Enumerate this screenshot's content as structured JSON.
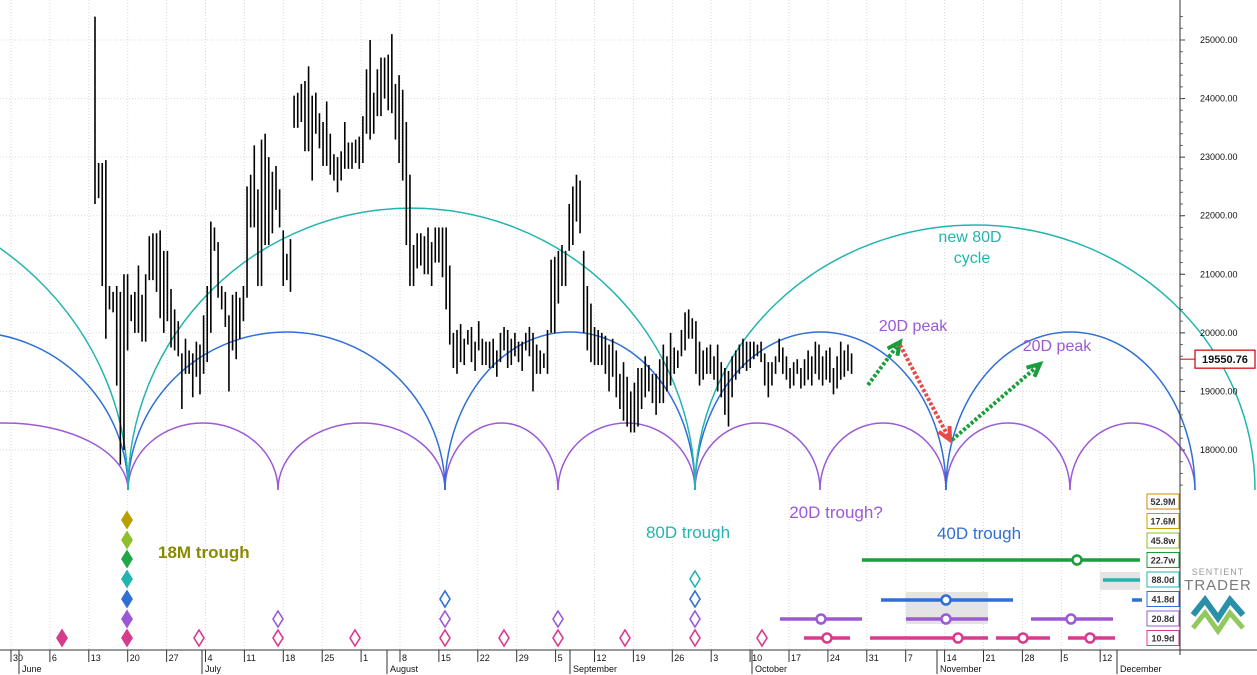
{
  "chart_data": {
    "type": "bar",
    "subtype": "ohlc-price-with-cycle-overlays",
    "title": "",
    "xlabel": "",
    "ylabel": "",
    "ylim": [
      17200,
      25450
    ],
    "y_ticks": [
      "25000.00",
      "24000.00",
      "23000.00",
      "22000.00",
      "21000.00",
      "20000.00",
      "19000.00",
      "18000.00"
    ],
    "last_price": "19550.76",
    "x_day_ticks": [
      "30",
      "6",
      "13",
      "20",
      "27",
      "4",
      "11",
      "18",
      "25",
      "1",
      "8",
      "15",
      "22",
      "29",
      "5",
      "12",
      "19",
      "26",
      "3",
      "10",
      "17",
      "24",
      "31",
      "7",
      "14",
      "21",
      "28",
      "5",
      "12"
    ],
    "x_month_labels": [
      "June",
      "July",
      "August",
      "September",
      "October",
      "November",
      "December"
    ],
    "grid": true,
    "price_bars": [
      [
        15,
        22200,
        25400
      ],
      [
        16,
        22300,
        22900
      ],
      [
        17,
        20800,
        22900
      ],
      [
        18,
        19900,
        22950
      ],
      [
        19,
        20400,
        20800
      ],
      [
        20,
        20350,
        20700
      ],
      [
        21,
        19100,
        20800
      ],
      [
        22,
        17750,
        20700
      ],
      [
        23,
        18000,
        21000
      ],
      [
        24,
        19700,
        21000
      ],
      [
        25,
        20200,
        20650
      ],
      [
        26,
        20000,
        20700
      ],
      [
        27,
        20000,
        21150
      ],
      [
        28,
        19850,
        20650
      ],
      [
        29,
        19850,
        21000
      ],
      [
        30,
        20900,
        21650
      ],
      [
        31,
        20900,
        21700
      ],
      [
        32,
        20700,
        21700
      ],
      [
        33,
        20250,
        21750
      ],
      [
        34,
        20000,
        21400
      ],
      [
        35,
        20200,
        21400
      ],
      [
        36,
        19750,
        20750
      ],
      [
        37,
        19700,
        20400
      ],
      [
        38,
        19600,
        20200
      ],
      [
        39,
        18700,
        19650
      ],
      [
        40,
        19300,
        19900
      ],
      [
        41,
        19300,
        19700
      ],
      [
        42,
        18900,
        19650
      ],
      [
        43,
        19250,
        19850
      ],
      [
        44,
        18950,
        19800
      ],
      [
        45,
        19300,
        20300
      ],
      [
        46,
        19500,
        20800
      ],
      [
        47,
        20000,
        21900
      ],
      [
        48,
        21400,
        21800
      ],
      [
        49,
        20600,
        21550
      ],
      [
        50,
        20400,
        20800
      ],
      [
        51,
        20100,
        20700
      ],
      [
        52,
        19000,
        20300
      ],
      [
        53,
        19700,
        20650
      ],
      [
        54,
        19550,
        20700
      ],
      [
        55,
        19900,
        20600
      ],
      [
        56,
        20200,
        20800
      ],
      [
        57,
        20600,
        22500
      ],
      [
        58,
        21800,
        22700
      ],
      [
        59,
        21800,
        23200
      ],
      [
        60,
        20800,
        22450
      ],
      [
        61,
        20800,
        23300
      ],
      [
        62,
        21500,
        23400
      ],
      [
        63,
        21500,
        23000
      ],
      [
        64,
        21700,
        22750
      ],
      [
        65,
        22100,
        22850
      ],
      [
        66,
        21800,
        22450
      ],
      [
        67,
        20800,
        21750
      ],
      [
        68,
        20900,
        21350
      ],
      [
        69,
        20700,
        21600
      ],
      [
        70,
        23500,
        24050
      ],
      [
        71,
        23500,
        24100
      ],
      [
        72,
        23600,
        24250
      ],
      [
        73,
        23100,
        24300
      ],
      [
        74,
        23100,
        24550
      ],
      [
        75,
        22600,
        24050
      ],
      [
        76,
        23400,
        24100
      ],
      [
        77,
        23150,
        23750
      ],
      [
        78,
        22850,
        23600
      ],
      [
        79,
        22850,
        23950
      ],
      [
        80,
        22700,
        23400
      ],
      [
        81,
        22600,
        23050
      ],
      [
        82,
        22400,
        23000
      ],
      [
        83,
        22600,
        23100
      ],
      [
        84,
        22800,
        23600
      ],
      [
        85,
        22800,
        23250
      ],
      [
        86,
        22800,
        23250
      ],
      [
        87,
        22900,
        23300
      ],
      [
        88,
        22800,
        23350
      ],
      [
        89,
        22900,
        23700
      ],
      [
        90,
        23400,
        24500
      ],
      [
        91,
        23300,
        25000
      ],
      [
        92,
        23400,
        24100
      ],
      [
        93,
        23700,
        24500
      ],
      [
        94,
        23700,
        24700
      ],
      [
        95,
        24000,
        24700
      ],
      [
        96,
        23800,
        24750
      ],
      [
        97,
        23750,
        25100
      ],
      [
        98,
        23300,
        24250
      ],
      [
        99,
        22900,
        24400
      ],
      [
        100,
        22600,
        24150
      ],
      [
        101,
        21500,
        23600
      ],
      [
        102,
        20800,
        22700
      ],
      [
        103,
        20800,
        21500
      ],
      [
        104,
        21100,
        21700
      ],
      [
        105,
        21150,
        21700
      ],
      [
        106,
        21000,
        21650
      ],
      [
        107,
        21000,
        21800
      ],
      [
        108,
        20800,
        21550
      ],
      [
        109,
        21200,
        21800
      ],
      [
        110,
        21200,
        21800
      ],
      [
        111,
        20950,
        21800
      ],
      [
        112,
        20400,
        21800
      ],
      [
        113,
        19800,
        21150
      ],
      [
        114,
        19400,
        20000
      ],
      [
        115,
        19300,
        20050
      ],
      [
        116,
        19500,
        20150
      ],
      [
        117,
        19450,
        19900
      ],
      [
        118,
        19800,
        20050
      ],
      [
        119,
        19500,
        20100
      ],
      [
        120,
        19350,
        19850
      ],
      [
        121,
        19700,
        20200
      ],
      [
        122,
        19450,
        19900
      ],
      [
        123,
        19450,
        19850
      ],
      [
        124,
        19400,
        19850
      ],
      [
        125,
        19400,
        19900
      ],
      [
        126,
        19250,
        19700
      ],
      [
        127,
        19500,
        20000
      ],
      [
        128,
        19700,
        20100
      ],
      [
        129,
        19400,
        20050
      ],
      [
        130,
        19450,
        19900
      ],
      [
        131,
        19600,
        20000
      ],
      [
        132,
        19500,
        19850
      ],
      [
        133,
        19350,
        19850
      ],
      [
        134,
        19700,
        20000
      ],
      [
        135,
        19600,
        20100
      ],
      [
        136,
        19000,
        20000
      ],
      [
        137,
        19300,
        19800
      ],
      [
        138,
        19300,
        19700
      ],
      [
        139,
        19400,
        19650
      ],
      [
        140,
        19300,
        20050
      ],
      [
        141,
        20000,
        21250
      ],
      [
        142,
        20000,
        21300
      ],
      [
        143,
        20500,
        21400
      ],
      [
        144,
        20800,
        21500
      ],
      [
        145,
        20800,
        21400
      ],
      [
        146,
        21400,
        22200
      ],
      [
        147,
        21500,
        22500
      ],
      [
        148,
        21900,
        22700
      ],
      [
        149,
        21700,
        22600
      ],
      [
        150,
        20000,
        21400
      ],
      [
        151,
        19700,
        20800
      ],
      [
        152,
        19500,
        20500
      ],
      [
        153,
        19450,
        20100
      ],
      [
        154,
        19450,
        20050
      ],
      [
        155,
        19450,
        20000
      ],
      [
        156,
        19300,
        19950
      ],
      [
        157,
        19000,
        19800
      ],
      [
        158,
        19250,
        19900
      ],
      [
        159,
        18900,
        19700
      ],
      [
        160,
        18700,
        19300
      ],
      [
        161,
        18500,
        19500
      ],
      [
        162,
        18400,
        19250
      ],
      [
        163,
        18300,
        19000
      ],
      [
        164,
        18300,
        19150
      ],
      [
        165,
        18400,
        19400
      ],
      [
        166,
        18700,
        19400
      ],
      [
        167,
        18900,
        19600
      ],
      [
        168,
        19000,
        19450
      ],
      [
        169,
        18800,
        19300
      ],
      [
        170,
        18600,
        19300
      ],
      [
        171,
        18800,
        19550
      ],
      [
        172,
        18800,
        19800
      ],
      [
        173,
        19000,
        19600
      ],
      [
        174,
        19100,
        20000
      ],
      [
        175,
        19300,
        19750
      ],
      [
        176,
        19400,
        19700
      ],
      [
        177,
        19600,
        20050
      ],
      [
        178,
        19700,
        20350
      ],
      [
        179,
        19900,
        20400
      ],
      [
        180,
        19900,
        20250
      ],
      [
        181,
        19300,
        20200
      ],
      [
        182,
        19100,
        19850
      ],
      [
        183,
        19200,
        19700
      ],
      [
        184,
        19300,
        19750
      ],
      [
        185,
        19300,
        19800
      ],
      [
        186,
        19200,
        19600
      ],
      [
        187,
        19000,
        19800
      ],
      [
        188,
        18900,
        19500
      ],
      [
        189,
        18600,
        19400
      ],
      [
        190,
        18400,
        19350
      ],
      [
        191,
        18900,
        19600
      ],
      [
        192,
        19200,
        19700
      ],
      [
        193,
        19300,
        19800
      ],
      [
        194,
        19400,
        19900
      ],
      [
        195,
        19350,
        19850
      ],
      [
        196,
        19400,
        19850
      ],
      [
        197,
        19550,
        19850
      ],
      [
        198,
        19600,
        19800
      ],
      [
        199,
        19500,
        19850
      ],
      [
        200,
        19100,
        19650
      ],
      [
        201,
        18900,
        19500
      ],
      [
        202,
        19100,
        19500
      ],
      [
        203,
        19300,
        19600
      ],
      [
        204,
        19500,
        19900
      ],
      [
        205,
        19300,
        19750
      ],
      [
        206,
        19200,
        19600
      ],
      [
        207,
        19050,
        19400
      ],
      [
        208,
        19100,
        19500
      ],
      [
        209,
        19300,
        19550
      ],
      [
        210,
        19050,
        19400
      ],
      [
        211,
        19100,
        19550
      ],
      [
        212,
        19200,
        19700
      ],
      [
        213,
        19100,
        19600
      ],
      [
        214,
        19300,
        19850
      ],
      [
        215,
        19200,
        19800
      ],
      [
        216,
        19100,
        19600
      ],
      [
        217,
        19200,
        19700
      ],
      [
        218,
        19150,
        19750
      ],
      [
        219,
        18950,
        19400
      ],
      [
        220,
        19050,
        19600
      ],
      [
        221,
        19200,
        19850
      ],
      [
        222,
        19250,
        19700
      ],
      [
        223,
        19350,
        19800
      ],
      [
        224,
        19300,
        19650
      ]
    ],
    "annotations": {
      "new80": "new 80D\ncycle",
      "peak1": "20D peak",
      "peak2": "20D peak",
      "trough18m": "18M trough",
      "trough80d": "80D trough",
      "trough20d": "20D trough?",
      "trough40d": "40D trough"
    },
    "cycle_labels": [
      "52.9M",
      "17.6M",
      "45.8w",
      "22.7w",
      "88.0d",
      "41.8d",
      "20.8d",
      "10.9d"
    ],
    "colors": {
      "c80": "#22b5b0",
      "c40": "#2f6fd6",
      "c20": "#9b59d6",
      "c10": "#d63c8c",
      "green": "#1a9e3c",
      "red": "#e84a4a",
      "olive": "#8a8a00",
      "bars": "#000000",
      "price_box": "#cc0000"
    },
    "logo": "SENTIENT TRADER"
  }
}
